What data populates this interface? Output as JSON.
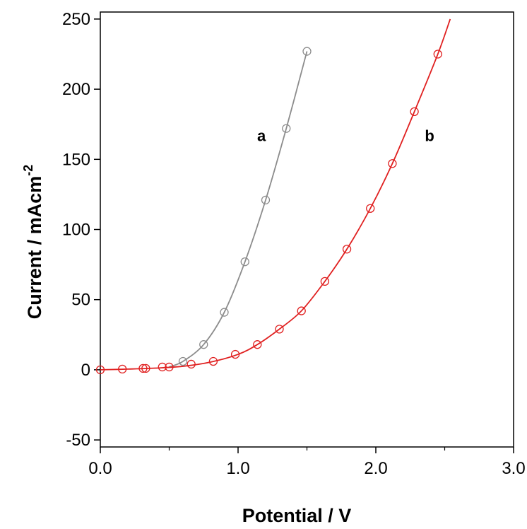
{
  "chart_data": {
    "type": "scatter",
    "xlabel": "Potential / V",
    "ylabel_main": "Current / mAcm",
    "ylabel_sup": "-2",
    "xlim": [
      0,
      3.0
    ],
    "ylim": [
      -55,
      255
    ],
    "x_ticks": [
      0.0,
      1.0,
      2.0,
      3.0
    ],
    "x_tick_labels": [
      "0.0",
      "1.0",
      "2.0",
      "3.0"
    ],
    "y_ticks": [
      -50,
      0,
      50,
      100,
      150,
      200,
      250
    ],
    "y_tick_labels": [
      "-50",
      "0",
      "50",
      "100",
      "150",
      "200",
      "250"
    ],
    "grid": false,
    "series": [
      {
        "label": "a",
        "label_pos": [
          1.17,
          163
        ],
        "color": "#8c8c8c",
        "markers": [
          [
            0.6,
            6
          ],
          [
            0.75,
            18
          ],
          [
            0.9,
            41
          ],
          [
            1.05,
            77
          ],
          [
            1.2,
            121
          ],
          [
            1.35,
            172
          ],
          [
            1.5,
            227
          ]
        ],
        "curve": [
          [
            0.5,
            2
          ],
          [
            0.6,
            6
          ],
          [
            0.75,
            18
          ],
          [
            0.9,
            41
          ],
          [
            1.05,
            77
          ],
          [
            1.2,
            121
          ],
          [
            1.35,
            172
          ],
          [
            1.5,
            227
          ]
        ]
      },
      {
        "label": "b",
        "label_pos": [
          2.39,
          163
        ],
        "color": "#e02020",
        "markers": [
          [
            0.0,
            0
          ],
          [
            0.16,
            0.5
          ],
          [
            0.31,
            1
          ],
          [
            0.33,
            1
          ],
          [
            0.45,
            2
          ],
          [
            0.5,
            2
          ],
          [
            0.66,
            4
          ],
          [
            0.82,
            6
          ],
          [
            0.98,
            11
          ],
          [
            1.14,
            18
          ],
          [
            1.3,
            29
          ],
          [
            1.46,
            42
          ],
          [
            1.63,
            63
          ],
          [
            1.79,
            86
          ],
          [
            1.96,
            115
          ],
          [
            2.12,
            147
          ],
          [
            2.28,
            184
          ],
          [
            2.45,
            225
          ]
        ],
        "curve": [
          [
            0.0,
            0
          ],
          [
            0.2,
            0.5
          ],
          [
            0.4,
            1.2
          ],
          [
            0.6,
            2.5
          ],
          [
            0.8,
            5.5
          ],
          [
            1.0,
            11
          ],
          [
            1.14,
            18
          ],
          [
            1.3,
            29
          ],
          [
            1.46,
            42
          ],
          [
            1.63,
            63
          ],
          [
            1.79,
            86
          ],
          [
            1.96,
            115
          ],
          [
            2.12,
            147
          ],
          [
            2.28,
            184
          ],
          [
            2.45,
            225
          ],
          [
            2.54,
            250
          ]
        ]
      }
    ]
  }
}
